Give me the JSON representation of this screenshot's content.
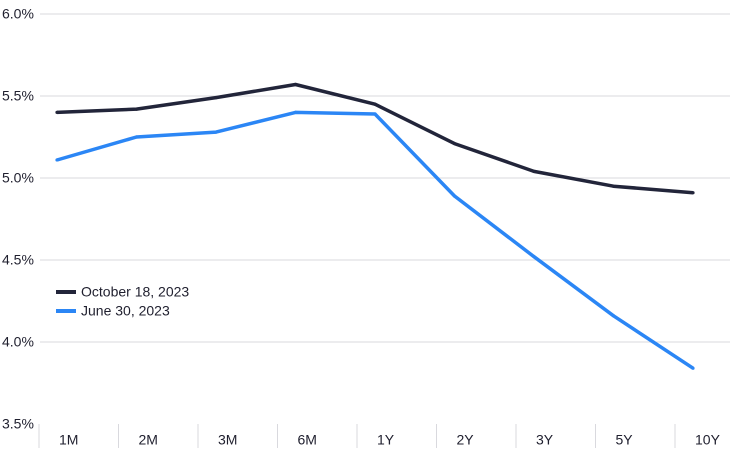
{
  "chart_data": {
    "type": "line",
    "categories": [
      "1M",
      "2M",
      "3M",
      "6M",
      "1Y",
      "2Y",
      "3Y",
      "5Y",
      "10Y"
    ],
    "ylim": [
      3.5,
      6.0
    ],
    "y_ticks": [
      {
        "value": 6.0,
        "label": "6.0%"
      },
      {
        "value": 5.5,
        "label": "5.5%"
      },
      {
        "value": 5.0,
        "label": "5.0%"
      },
      {
        "value": 4.5,
        "label": "4.5%"
      },
      {
        "value": 4.0,
        "label": "4.0%"
      },
      {
        "value": 3.5,
        "label": "3.5%"
      }
    ],
    "grid": true,
    "legend_position": "left",
    "series": [
      {
        "name": "October 18, 2023",
        "color": "#22253a",
        "values": [
          5.4,
          5.42,
          5.49,
          5.57,
          5.45,
          5.21,
          5.04,
          4.95,
          4.91
        ]
      },
      {
        "name": "June 30, 2023",
        "color": "#2b86f5",
        "values": [
          5.11,
          5.25,
          5.28,
          5.4,
          5.39,
          4.89,
          4.52,
          4.16,
          3.84
        ]
      }
    ]
  }
}
